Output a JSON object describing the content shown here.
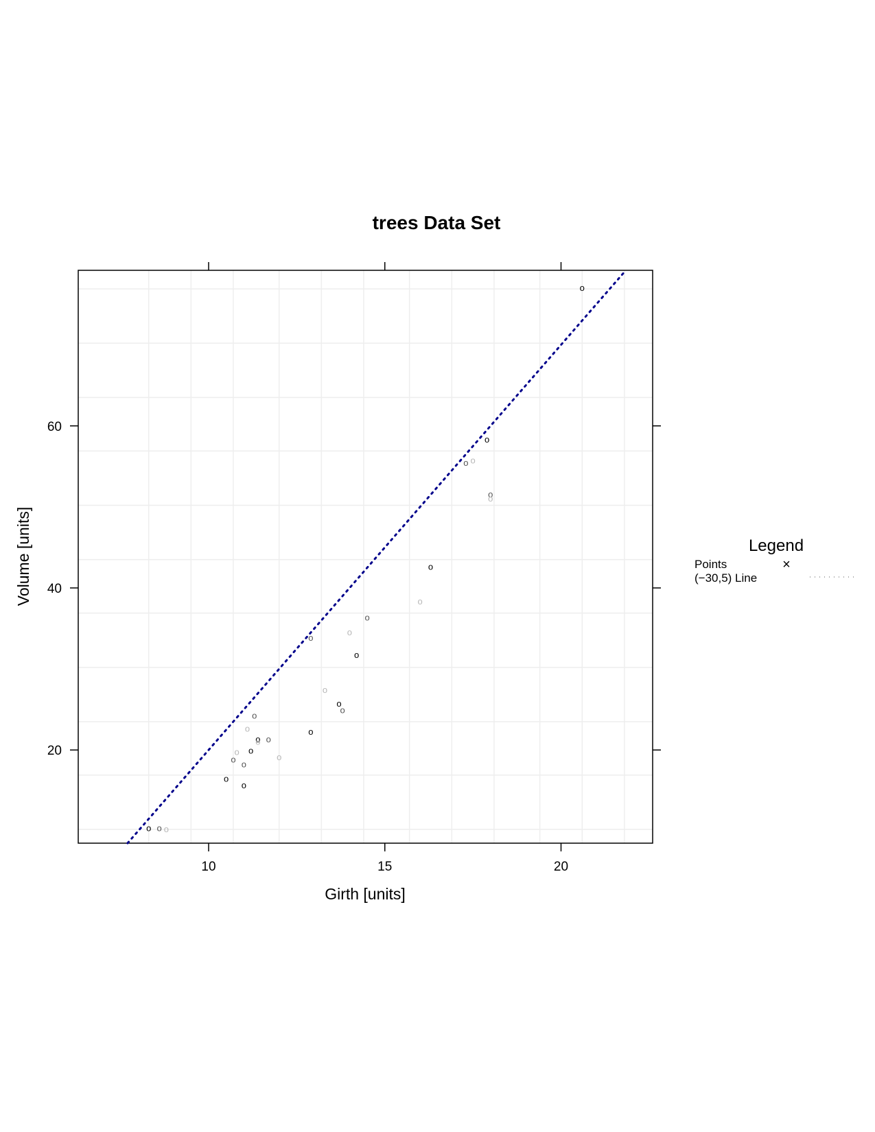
{
  "chart_data": {
    "type": "scatter",
    "title": "trees Data Set",
    "xlabel": "Girth [units]",
    "ylabel": "Volume [units]",
    "xlim": [
      6.3,
      22.6
    ],
    "ylim": [
      8.5,
      79.2
    ],
    "xticks": [
      10,
      15,
      20
    ],
    "yticks": [
      20,
      40,
      60
    ],
    "grid": true,
    "point_marker": "o",
    "series": [
      {
        "color": "#000000",
        "points": [
          {
            "x": 8.3,
            "y": 10.3
          },
          {
            "x": 10.5,
            "y": 16.4
          },
          {
            "x": 11.0,
            "y": 15.6
          },
          {
            "x": 11.2,
            "y": 19.9
          },
          {
            "x": 11.4,
            "y": 21.3
          },
          {
            "x": 12.9,
            "y": 22.2
          },
          {
            "x": 13.7,
            "y": 25.7
          },
          {
            "x": 14.2,
            "y": 31.7
          },
          {
            "x": 16.3,
            "y": 42.6
          },
          {
            "x": 17.9,
            "y": 58.3
          },
          {
            "x": 20.6,
            "y": 77.0
          }
        ]
      },
      {
        "color": "#555555",
        "points": [
          {
            "x": 8.6,
            "y": 10.3
          },
          {
            "x": 10.7,
            "y": 18.8
          },
          {
            "x": 11.0,
            "y": 18.2
          },
          {
            "x": 11.3,
            "y": 24.2
          },
          {
            "x": 11.7,
            "y": 21.3
          },
          {
            "x": 12.9,
            "y": 33.8
          },
          {
            "x": 13.8,
            "y": 24.9
          },
          {
            "x": 14.5,
            "y": 36.3
          },
          {
            "x": 17.3,
            "y": 55.4
          },
          {
            "x": 18.0,
            "y": 51.5
          }
        ]
      },
      {
        "color": "#b8b8b8",
        "points": [
          {
            "x": 8.8,
            "y": 10.2
          },
          {
            "x": 10.8,
            "y": 19.7
          },
          {
            "x": 11.1,
            "y": 22.6
          },
          {
            "x": 11.4,
            "y": 21.0
          },
          {
            "x": 12.0,
            "y": 19.1
          },
          {
            "x": 13.3,
            "y": 27.4
          },
          {
            "x": 14.0,
            "y": 34.5
          },
          {
            "x": 16.0,
            "y": 38.3
          },
          {
            "x": 17.5,
            "y": 55.7
          },
          {
            "x": 18.0,
            "y": 51.0
          }
        ]
      }
    ],
    "reference_line": {
      "intercept": -30,
      "slope": 5,
      "color": "#00008b",
      "style": "dotted"
    },
    "legend": {
      "title": "Legend",
      "placement": "right",
      "items": [
        {
          "label": "Points",
          "symbol": "×"
        },
        {
          "label": "(−30,5) Line",
          "symbol": "dotted-line"
        }
      ]
    }
  }
}
